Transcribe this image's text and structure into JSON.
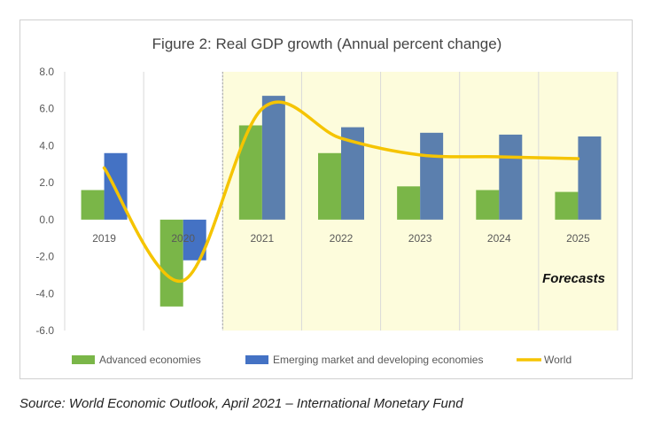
{
  "chart_data": {
    "type": "bar",
    "title": "Figure 2: Real GDP growth (Annual percent change)",
    "categories": [
      "2019",
      "2020",
      "2021",
      "2022",
      "2023",
      "2024",
      "2025"
    ],
    "series": [
      {
        "name": "Advanced economies",
        "type": "bar",
        "color": "#7ab648",
        "values": [
          1.6,
          -4.7,
          5.1,
          3.6,
          1.8,
          1.6,
          1.5
        ]
      },
      {
        "name": "Emerging market and developing economies",
        "type": "bar",
        "color": "#5b7fae",
        "highlight_color": "#4472c4",
        "highlight_categories": [
          "2019",
          "2020"
        ],
        "values": [
          3.6,
          -2.2,
          6.7,
          5.0,
          4.7,
          4.6,
          4.5
        ]
      },
      {
        "name": "World",
        "type": "line",
        "color": "#f5c400",
        "values": [
          2.8,
          -3.3,
          6.0,
          4.4,
          3.5,
          3.4,
          3.3
        ]
      }
    ],
    "ylim": [
      -6.0,
      8.0
    ],
    "yticks": [
      "8.0",
      "6.0",
      "4.0",
      "2.0",
      "0.0",
      "-2.0",
      "-4.0",
      "-6.0"
    ],
    "forecast_label": "Forecasts",
    "forecast_start": "2021",
    "forecast_shade_color": "#fdfcdc",
    "grid": "vertical",
    "legend_position": "bottom"
  },
  "source_note": "Source: World Economic Outlook, April 2021 – International Monetary Fund"
}
